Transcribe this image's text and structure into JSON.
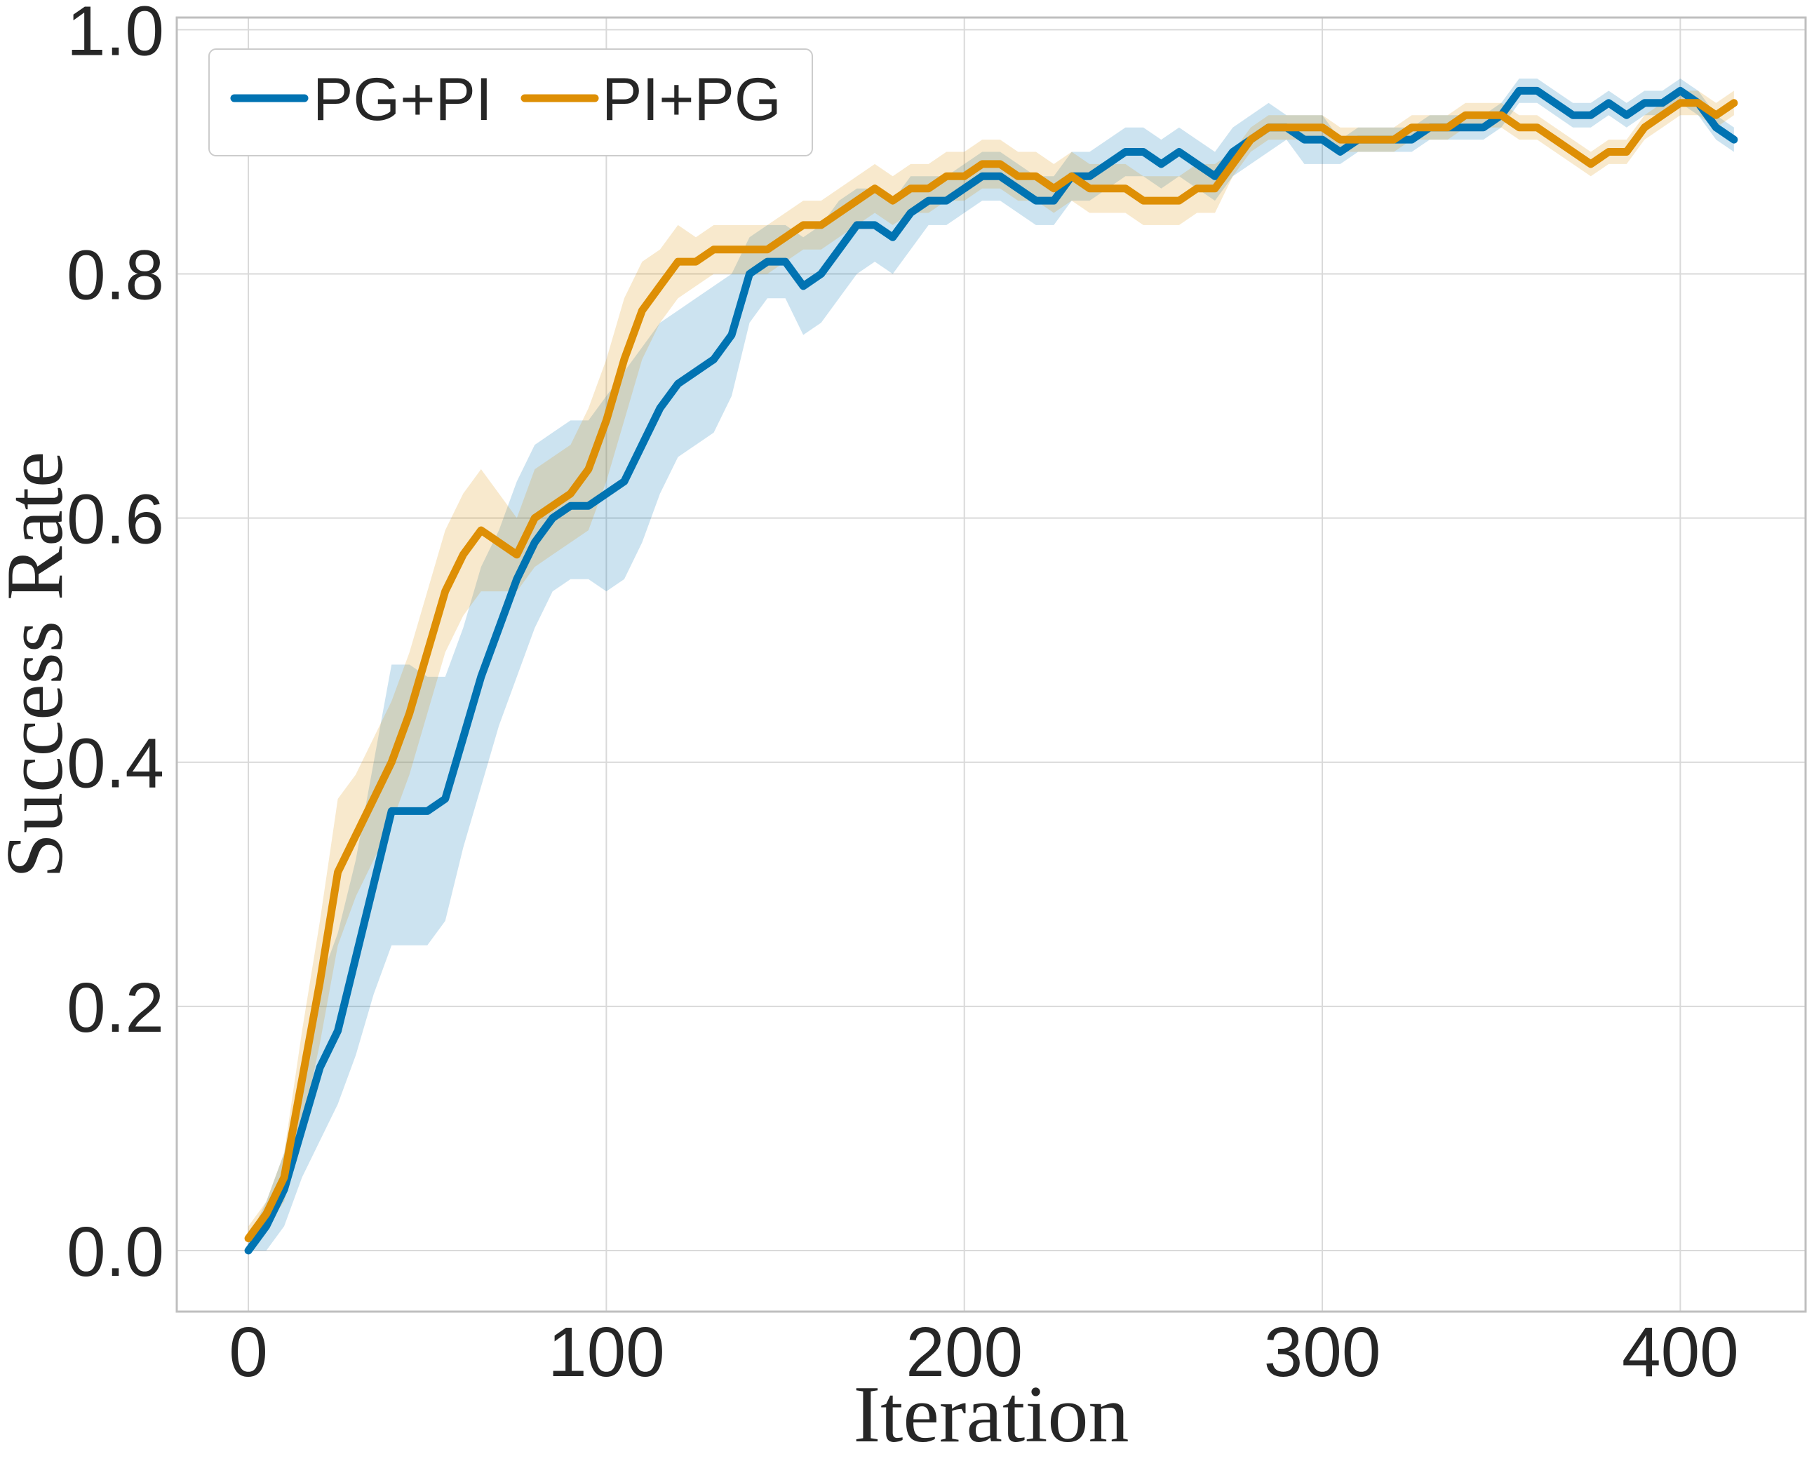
{
  "chart_data": {
    "type": "line",
    "title": "",
    "xlabel": "Iteration",
    "ylabel": "Success Rate",
    "xlim": [
      -20,
      435
    ],
    "ylim": [
      -0.05,
      1.01
    ],
    "xticks": [
      0,
      100,
      200,
      300,
      400
    ],
    "yticks": [
      0.0,
      0.2,
      0.4,
      0.6,
      0.8,
      1.0
    ],
    "xtick_labels": [
      "0",
      "100",
      "200",
      "300",
      "400"
    ],
    "ytick_labels": [
      "0.0",
      "0.2",
      "0.4",
      "0.6",
      "0.8",
      "1.0"
    ],
    "grid": true,
    "legend_position": "top-left",
    "x": [
      0,
      5,
      10,
      15,
      20,
      25,
      30,
      35,
      40,
      45,
      50,
      55,
      60,
      65,
      70,
      75,
      80,
      85,
      90,
      95,
      100,
      105,
      110,
      115,
      120,
      125,
      130,
      135,
      140,
      145,
      150,
      155,
      160,
      165,
      170,
      175,
      180,
      185,
      190,
      195,
      200,
      205,
      210,
      215,
      220,
      225,
      230,
      235,
      240,
      245,
      250,
      255,
      260,
      265,
      270,
      275,
      280,
      285,
      290,
      295,
      300,
      305,
      310,
      315,
      320,
      325,
      330,
      335,
      340,
      345,
      350,
      355,
      360,
      365,
      370,
      375,
      380,
      385,
      390,
      395,
      400,
      405,
      410,
      415
    ],
    "series": [
      {
        "name": "PG+PI",
        "color": "#0173b2",
        "values": [
          0.0,
          0.02,
          0.05,
          0.1,
          0.15,
          0.18,
          0.24,
          0.3,
          0.36,
          0.36,
          0.36,
          0.37,
          0.42,
          0.47,
          0.51,
          0.55,
          0.58,
          0.6,
          0.61,
          0.61,
          0.62,
          0.63,
          0.66,
          0.69,
          0.71,
          0.72,
          0.73,
          0.75,
          0.8,
          0.81,
          0.81,
          0.79,
          0.8,
          0.82,
          0.84,
          0.84,
          0.83,
          0.85,
          0.86,
          0.86,
          0.87,
          0.88,
          0.88,
          0.87,
          0.86,
          0.86,
          0.88,
          0.88,
          0.89,
          0.9,
          0.9,
          0.89,
          0.9,
          0.89,
          0.88,
          0.9,
          0.91,
          0.92,
          0.92,
          0.91,
          0.91,
          0.9,
          0.91,
          0.91,
          0.91,
          0.91,
          0.92,
          0.92,
          0.92,
          0.92,
          0.93,
          0.95,
          0.95,
          0.94,
          0.93,
          0.93,
          0.94,
          0.93,
          0.94,
          0.94,
          0.95,
          0.94,
          0.92,
          0.91
        ],
        "lower": [
          0.0,
          0.0,
          0.02,
          0.06,
          0.09,
          0.12,
          0.16,
          0.21,
          0.25,
          0.25,
          0.25,
          0.27,
          0.33,
          0.38,
          0.43,
          0.47,
          0.51,
          0.54,
          0.55,
          0.55,
          0.54,
          0.55,
          0.58,
          0.62,
          0.65,
          0.66,
          0.67,
          0.7,
          0.76,
          0.78,
          0.78,
          0.75,
          0.76,
          0.78,
          0.8,
          0.81,
          0.8,
          0.82,
          0.84,
          0.84,
          0.85,
          0.86,
          0.86,
          0.85,
          0.84,
          0.84,
          0.86,
          0.86,
          0.87,
          0.88,
          0.88,
          0.87,
          0.88,
          0.87,
          0.86,
          0.88,
          0.89,
          0.9,
          0.91,
          0.89,
          0.89,
          0.89,
          0.9,
          0.9,
          0.9,
          0.9,
          0.91,
          0.91,
          0.91,
          0.91,
          0.92,
          0.94,
          0.94,
          0.93,
          0.92,
          0.92,
          0.93,
          0.92,
          0.93,
          0.93,
          0.94,
          0.93,
          0.91,
          0.9
        ],
        "upper": [
          0.01,
          0.04,
          0.08,
          0.15,
          0.22,
          0.26,
          0.32,
          0.4,
          0.48,
          0.48,
          0.47,
          0.47,
          0.51,
          0.56,
          0.59,
          0.63,
          0.66,
          0.67,
          0.68,
          0.68,
          0.7,
          0.72,
          0.74,
          0.76,
          0.77,
          0.78,
          0.79,
          0.8,
          0.83,
          0.84,
          0.84,
          0.83,
          0.84,
          0.86,
          0.87,
          0.87,
          0.86,
          0.88,
          0.88,
          0.88,
          0.89,
          0.9,
          0.9,
          0.89,
          0.88,
          0.88,
          0.9,
          0.9,
          0.91,
          0.92,
          0.92,
          0.91,
          0.92,
          0.91,
          0.9,
          0.92,
          0.93,
          0.94,
          0.93,
          0.93,
          0.93,
          0.91,
          0.92,
          0.92,
          0.92,
          0.92,
          0.93,
          0.93,
          0.93,
          0.93,
          0.94,
          0.96,
          0.96,
          0.95,
          0.94,
          0.94,
          0.95,
          0.94,
          0.95,
          0.95,
          0.96,
          0.95,
          0.93,
          0.92
        ]
      },
      {
        "name": "PI+PG",
        "color": "#de8f05",
        "values": [
          0.01,
          0.03,
          0.06,
          0.14,
          0.22,
          0.31,
          0.34,
          0.37,
          0.4,
          0.44,
          0.49,
          0.54,
          0.57,
          0.59,
          0.58,
          0.57,
          0.6,
          0.61,
          0.62,
          0.64,
          0.68,
          0.73,
          0.77,
          0.79,
          0.81,
          0.81,
          0.82,
          0.82,
          0.82,
          0.82,
          0.83,
          0.84,
          0.84,
          0.85,
          0.86,
          0.87,
          0.86,
          0.87,
          0.87,
          0.88,
          0.88,
          0.89,
          0.89,
          0.88,
          0.88,
          0.87,
          0.88,
          0.87,
          0.87,
          0.87,
          0.86,
          0.86,
          0.86,
          0.87,
          0.87,
          0.89,
          0.91,
          0.92,
          0.92,
          0.92,
          0.92,
          0.91,
          0.91,
          0.91,
          0.91,
          0.92,
          0.92,
          0.92,
          0.93,
          0.93,
          0.93,
          0.92,
          0.92,
          0.91,
          0.9,
          0.89,
          0.9,
          0.9,
          0.92,
          0.93,
          0.94,
          0.94,
          0.93,
          0.94
        ],
        "lower": [
          0.01,
          0.02,
          0.04,
          0.1,
          0.17,
          0.25,
          0.29,
          0.32,
          0.35,
          0.39,
          0.44,
          0.49,
          0.52,
          0.54,
          0.54,
          0.54,
          0.56,
          0.57,
          0.58,
          0.59,
          0.63,
          0.68,
          0.73,
          0.76,
          0.78,
          0.79,
          0.8,
          0.8,
          0.8,
          0.8,
          0.81,
          0.82,
          0.82,
          0.83,
          0.84,
          0.85,
          0.84,
          0.85,
          0.85,
          0.86,
          0.86,
          0.87,
          0.87,
          0.86,
          0.86,
          0.85,
          0.86,
          0.85,
          0.85,
          0.85,
          0.84,
          0.84,
          0.84,
          0.85,
          0.85,
          0.88,
          0.9,
          0.91,
          0.91,
          0.91,
          0.91,
          0.9,
          0.9,
          0.9,
          0.9,
          0.91,
          0.91,
          0.91,
          0.92,
          0.92,
          0.92,
          0.91,
          0.91,
          0.9,
          0.89,
          0.88,
          0.89,
          0.89,
          0.91,
          0.92,
          0.93,
          0.93,
          0.92,
          0.93
        ],
        "upper": [
          0.02,
          0.04,
          0.08,
          0.18,
          0.27,
          0.37,
          0.39,
          0.42,
          0.45,
          0.49,
          0.54,
          0.59,
          0.62,
          0.64,
          0.62,
          0.6,
          0.64,
          0.65,
          0.66,
          0.69,
          0.73,
          0.78,
          0.81,
          0.82,
          0.84,
          0.83,
          0.84,
          0.84,
          0.84,
          0.84,
          0.85,
          0.86,
          0.86,
          0.87,
          0.88,
          0.89,
          0.88,
          0.89,
          0.89,
          0.9,
          0.9,
          0.91,
          0.91,
          0.9,
          0.9,
          0.89,
          0.9,
          0.89,
          0.89,
          0.89,
          0.88,
          0.88,
          0.88,
          0.89,
          0.89,
          0.9,
          0.92,
          0.93,
          0.93,
          0.93,
          0.93,
          0.92,
          0.92,
          0.92,
          0.92,
          0.93,
          0.93,
          0.93,
          0.94,
          0.94,
          0.94,
          0.93,
          0.93,
          0.92,
          0.91,
          0.9,
          0.91,
          0.91,
          0.93,
          0.94,
          0.95,
          0.95,
          0.94,
          0.95
        ]
      }
    ]
  }
}
